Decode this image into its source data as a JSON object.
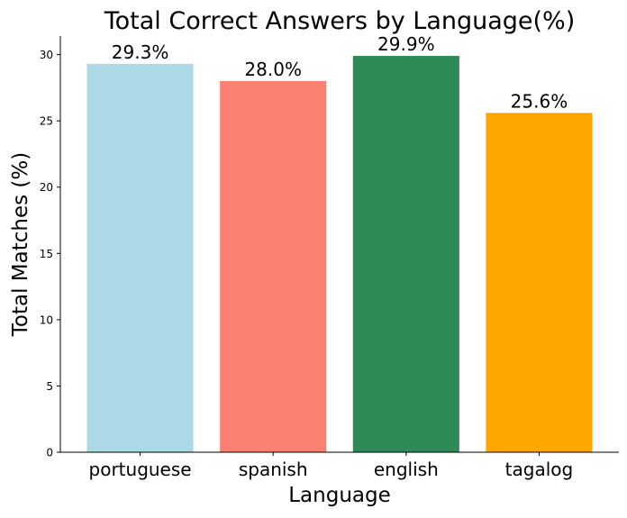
{
  "chart_data": {
    "type": "bar",
    "title": "Total Correct Answers by Language(%)",
    "xlabel": "Language",
    "ylabel": "Total Matches (%)",
    "categories": [
      "portuguese",
      "spanish",
      "english",
      "tagalog"
    ],
    "values": [
      29.3,
      28.0,
      29.9,
      25.6
    ],
    "value_labels": [
      "29.3%",
      "28.0%",
      "29.9%",
      "25.6%"
    ],
    "colors": [
      "#add8e6",
      "#fa8072",
      "#2e8b57",
      "#ffa500"
    ],
    "ylim": [
      0,
      31.4
    ],
    "yticks": [
      0,
      5,
      10,
      15,
      20,
      25,
      30
    ],
    "ytick_labels": [
      "0",
      "5",
      "10",
      "15",
      "20",
      "25",
      "30"
    ],
    "grid": false,
    "legend": "none"
  }
}
